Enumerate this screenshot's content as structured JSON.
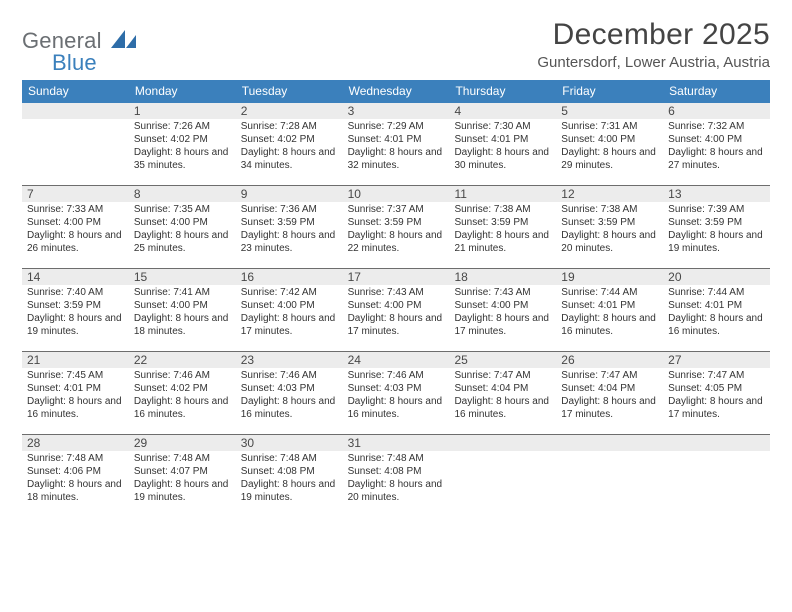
{
  "logo": {
    "word1": "General",
    "word2": "Blue",
    "word1_color": "#6b6f73",
    "word2_color": "#3b80bc",
    "shape_color": "#2e6da8"
  },
  "title": "December 2025",
  "location": "Guntersdorf, Lower Austria, Austria",
  "colors": {
    "header_bg": "#3b80bc",
    "header_text": "#ffffff",
    "shade_bg": "#ececec",
    "divider": "#6d6d6d",
    "text": "#333333",
    "title_text": "#444444"
  },
  "daysOfWeek": [
    "Sunday",
    "Monday",
    "Tuesday",
    "Wednesday",
    "Thursday",
    "Friday",
    "Saturday"
  ],
  "weeks": [
    [
      {
        "n": "",
        "sunrise": "",
        "sunset": "",
        "daylight": ""
      },
      {
        "n": "1",
        "sunrise": "7:26 AM",
        "sunset": "4:02 PM",
        "daylight": "8 hours and 35 minutes."
      },
      {
        "n": "2",
        "sunrise": "7:28 AM",
        "sunset": "4:02 PM",
        "daylight": "8 hours and 34 minutes."
      },
      {
        "n": "3",
        "sunrise": "7:29 AM",
        "sunset": "4:01 PM",
        "daylight": "8 hours and 32 minutes."
      },
      {
        "n": "4",
        "sunrise": "7:30 AM",
        "sunset": "4:01 PM",
        "daylight": "8 hours and 30 minutes."
      },
      {
        "n": "5",
        "sunrise": "7:31 AM",
        "sunset": "4:00 PM",
        "daylight": "8 hours and 29 minutes."
      },
      {
        "n": "6",
        "sunrise": "7:32 AM",
        "sunset": "4:00 PM",
        "daylight": "8 hours and 27 minutes."
      }
    ],
    [
      {
        "n": "7",
        "sunrise": "7:33 AM",
        "sunset": "4:00 PM",
        "daylight": "8 hours and 26 minutes."
      },
      {
        "n": "8",
        "sunrise": "7:35 AM",
        "sunset": "4:00 PM",
        "daylight": "8 hours and 25 minutes."
      },
      {
        "n": "9",
        "sunrise": "7:36 AM",
        "sunset": "3:59 PM",
        "daylight": "8 hours and 23 minutes."
      },
      {
        "n": "10",
        "sunrise": "7:37 AM",
        "sunset": "3:59 PM",
        "daylight": "8 hours and 22 minutes."
      },
      {
        "n": "11",
        "sunrise": "7:38 AM",
        "sunset": "3:59 PM",
        "daylight": "8 hours and 21 minutes."
      },
      {
        "n": "12",
        "sunrise": "7:38 AM",
        "sunset": "3:59 PM",
        "daylight": "8 hours and 20 minutes."
      },
      {
        "n": "13",
        "sunrise": "7:39 AM",
        "sunset": "3:59 PM",
        "daylight": "8 hours and 19 minutes."
      }
    ],
    [
      {
        "n": "14",
        "sunrise": "7:40 AM",
        "sunset": "3:59 PM",
        "daylight": "8 hours and 19 minutes."
      },
      {
        "n": "15",
        "sunrise": "7:41 AM",
        "sunset": "4:00 PM",
        "daylight": "8 hours and 18 minutes."
      },
      {
        "n": "16",
        "sunrise": "7:42 AM",
        "sunset": "4:00 PM",
        "daylight": "8 hours and 17 minutes."
      },
      {
        "n": "17",
        "sunrise": "7:43 AM",
        "sunset": "4:00 PM",
        "daylight": "8 hours and 17 minutes."
      },
      {
        "n": "18",
        "sunrise": "7:43 AM",
        "sunset": "4:00 PM",
        "daylight": "8 hours and 17 minutes."
      },
      {
        "n": "19",
        "sunrise": "7:44 AM",
        "sunset": "4:01 PM",
        "daylight": "8 hours and 16 minutes."
      },
      {
        "n": "20",
        "sunrise": "7:44 AM",
        "sunset": "4:01 PM",
        "daylight": "8 hours and 16 minutes."
      }
    ],
    [
      {
        "n": "21",
        "sunrise": "7:45 AM",
        "sunset": "4:01 PM",
        "daylight": "8 hours and 16 minutes."
      },
      {
        "n": "22",
        "sunrise": "7:46 AM",
        "sunset": "4:02 PM",
        "daylight": "8 hours and 16 minutes."
      },
      {
        "n": "23",
        "sunrise": "7:46 AM",
        "sunset": "4:03 PM",
        "daylight": "8 hours and 16 minutes."
      },
      {
        "n": "24",
        "sunrise": "7:46 AM",
        "sunset": "4:03 PM",
        "daylight": "8 hours and 16 minutes."
      },
      {
        "n": "25",
        "sunrise": "7:47 AM",
        "sunset": "4:04 PM",
        "daylight": "8 hours and 16 minutes."
      },
      {
        "n": "26",
        "sunrise": "7:47 AM",
        "sunset": "4:04 PM",
        "daylight": "8 hours and 17 minutes."
      },
      {
        "n": "27",
        "sunrise": "7:47 AM",
        "sunset": "4:05 PM",
        "daylight": "8 hours and 17 minutes."
      }
    ],
    [
      {
        "n": "28",
        "sunrise": "7:48 AM",
        "sunset": "4:06 PM",
        "daylight": "8 hours and 18 minutes."
      },
      {
        "n": "29",
        "sunrise": "7:48 AM",
        "sunset": "4:07 PM",
        "daylight": "8 hours and 19 minutes."
      },
      {
        "n": "30",
        "sunrise": "7:48 AM",
        "sunset": "4:08 PM",
        "daylight": "8 hours and 19 minutes."
      },
      {
        "n": "31",
        "sunrise": "7:48 AM",
        "sunset": "4:08 PM",
        "daylight": "8 hours and 20 minutes."
      },
      {
        "n": "",
        "sunrise": "",
        "sunset": "",
        "daylight": ""
      },
      {
        "n": "",
        "sunrise": "",
        "sunset": "",
        "daylight": ""
      },
      {
        "n": "",
        "sunrise": "",
        "sunset": "",
        "daylight": ""
      }
    ]
  ],
  "labels": {
    "sunrise": "Sunrise:",
    "sunset": "Sunset:",
    "daylight": "Daylight:"
  }
}
